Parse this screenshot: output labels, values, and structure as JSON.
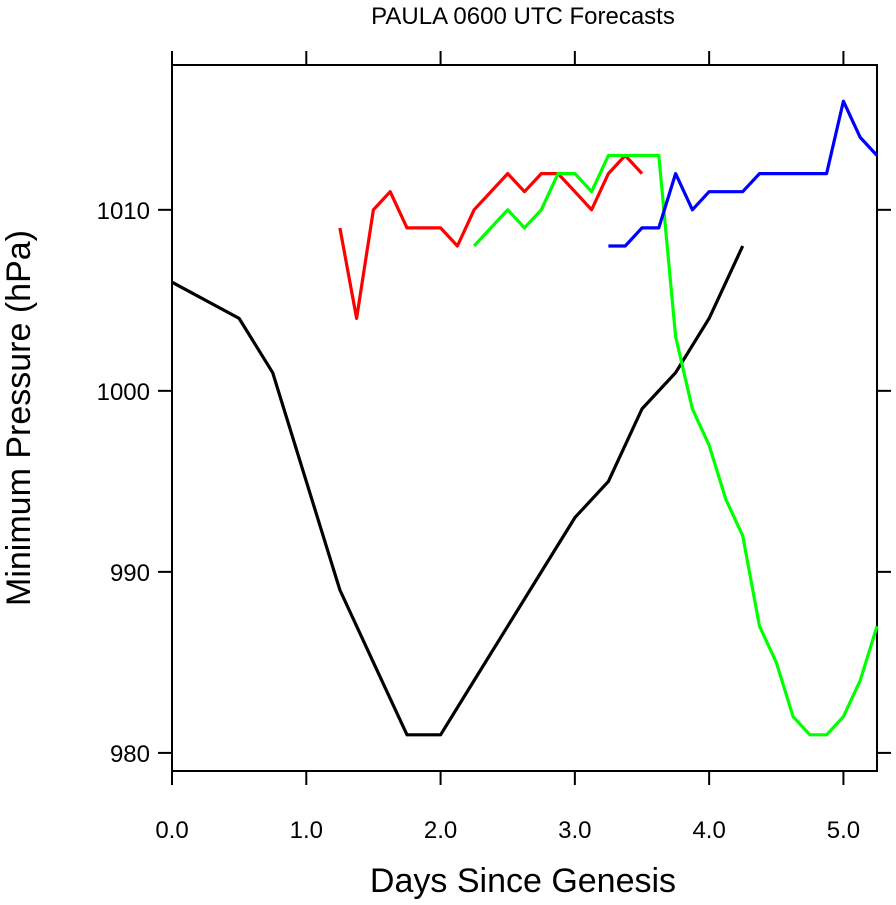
{
  "chart_data": {
    "type": "line",
    "title": "PAULA 0600 UTC Forecasts",
    "xlabel": "Days Since Genesis",
    "ylabel": "Minimum Pressure (hPa)",
    "xlim": [
      0,
      5.25
    ],
    "ylim": [
      979,
      1018
    ],
    "x_ticks": [
      0,
      1,
      2,
      3,
      4,
      5
    ],
    "x_tick_labels": [
      "0.0",
      "1.0",
      "2.0",
      "3.0",
      "4.0",
      "5.0"
    ],
    "y_ticks": [
      980,
      990,
      1000,
      1010
    ],
    "y_tick_labels": [
      "980",
      "990",
      "1000",
      "1010"
    ],
    "grid": false,
    "legend": "none",
    "series": [
      {
        "color": "#000000",
        "points": [
          [
            0.0,
            1006
          ],
          [
            0.5,
            1004
          ],
          [
            0.75,
            1001
          ],
          [
            1.0,
            995
          ],
          [
            1.25,
            989
          ],
          [
            1.5,
            985
          ],
          [
            1.75,
            981
          ],
          [
            2.0,
            981
          ],
          [
            2.25,
            984
          ],
          [
            2.5,
            987
          ],
          [
            2.75,
            990
          ],
          [
            3.0,
            993
          ],
          [
            3.25,
            995
          ],
          [
            3.5,
            999
          ],
          [
            3.75,
            1001
          ],
          [
            4.0,
            1004
          ],
          [
            4.25,
            1008
          ]
        ]
      },
      {
        "color": "#ff0000",
        "points": [
          [
            1.25,
            1009
          ],
          [
            1.375,
            1004
          ],
          [
            1.5,
            1010
          ],
          [
            1.625,
            1011
          ],
          [
            1.75,
            1009
          ],
          [
            2.0,
            1009
          ],
          [
            2.125,
            1008
          ],
          [
            2.25,
            1010
          ],
          [
            2.5,
            1012
          ],
          [
            2.625,
            1011
          ],
          [
            2.75,
            1012
          ],
          [
            2.875,
            1012
          ],
          [
            3.0,
            1011
          ],
          [
            3.125,
            1010
          ],
          [
            3.25,
            1012
          ],
          [
            3.375,
            1013
          ],
          [
            3.5,
            1012
          ]
        ]
      },
      {
        "color": "#00ff00",
        "points": [
          [
            2.25,
            1008
          ],
          [
            2.375,
            1009
          ],
          [
            2.5,
            1010
          ],
          [
            2.625,
            1009
          ],
          [
            2.75,
            1010
          ],
          [
            2.875,
            1012
          ],
          [
            3.0,
            1012
          ],
          [
            3.125,
            1011
          ],
          [
            3.25,
            1013
          ],
          [
            3.625,
            1013
          ],
          [
            3.75,
            1003
          ],
          [
            3.875,
            999
          ],
          [
            4.0,
            997
          ],
          [
            4.125,
            994
          ],
          [
            4.25,
            992
          ],
          [
            4.375,
            987
          ],
          [
            4.5,
            985
          ],
          [
            4.625,
            982
          ],
          [
            4.75,
            981
          ],
          [
            4.875,
            981
          ],
          [
            5.0,
            982
          ],
          [
            5.125,
            984
          ],
          [
            5.25,
            987
          ]
        ]
      },
      {
        "color": "#0000ff",
        "points": [
          [
            3.25,
            1008
          ],
          [
            3.375,
            1008
          ],
          [
            3.5,
            1009
          ],
          [
            3.625,
            1009
          ],
          [
            3.75,
            1012
          ],
          [
            3.875,
            1010
          ],
          [
            4.0,
            1011
          ],
          [
            4.125,
            1011
          ],
          [
            4.25,
            1011
          ],
          [
            4.375,
            1012
          ],
          [
            4.5,
            1012
          ],
          [
            4.625,
            1012
          ],
          [
            4.75,
            1012
          ],
          [
            4.875,
            1012
          ],
          [
            5.0,
            1016
          ],
          [
            5.125,
            1014
          ],
          [
            5.25,
            1013
          ]
        ]
      }
    ]
  }
}
